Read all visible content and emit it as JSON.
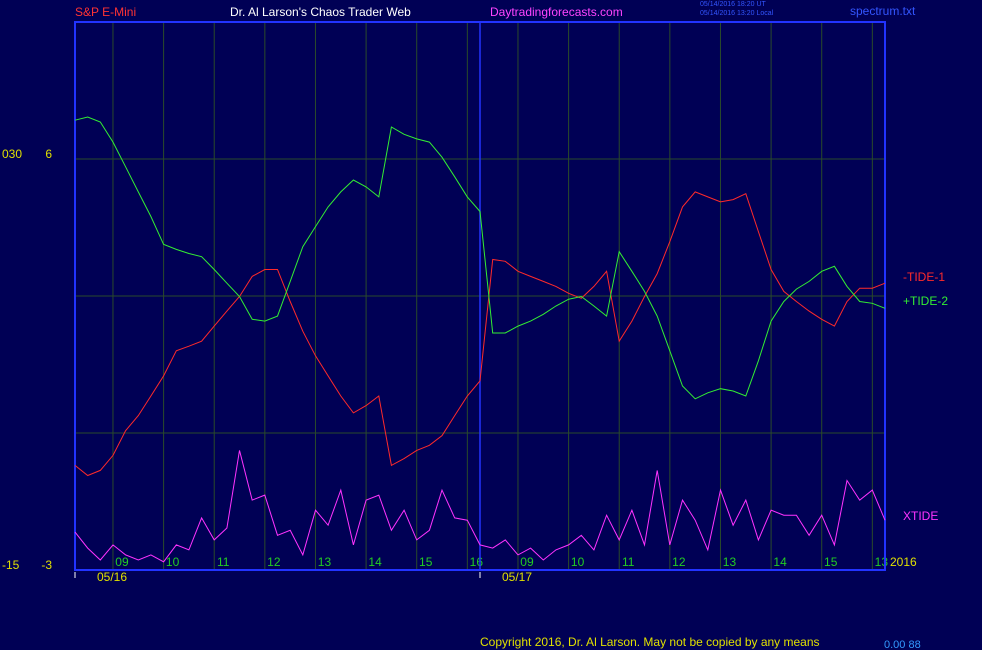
{
  "header": {
    "symbol": "S&P E-Mini",
    "site": "Dr. Al Larson's Chaos Trader Web",
    "url": "Daytradingforecasts.com",
    "stamp_ut": "05/14/2016 18:20 UT",
    "stamp_local": "05/14/2016 13:20 Local",
    "file": "spectrum.txt"
  },
  "footer": {
    "copyright": "Copyright 2016, Dr. Al Larson. May not be copied by any means",
    "status": "0.00 88"
  },
  "chart_data": {
    "type": "line",
    "x": [
      0,
      0.25,
      0.5,
      0.75,
      1,
      1.25,
      1.5,
      1.75,
      2,
      2.25,
      2.5,
      2.75,
      3,
      3.25,
      3.5,
      3.75,
      4,
      4.25,
      4.5,
      4.75,
      5,
      5.25,
      5.5,
      5.75,
      6,
      6.25,
      6.5,
      6.75,
      7,
      7.25,
      7.5,
      7.75,
      8,
      8.25,
      8.5,
      8.75,
      9,
      9.25,
      9.5,
      9.75,
      10,
      10.25,
      10.5,
      10.75,
      11,
      11.25,
      11.5,
      11.75,
      12,
      12.25,
      12.5,
      12.75,
      13,
      13.25,
      13.5,
      13.75,
      14,
      14.25,
      14.5,
      14.75,
      15,
      15.25,
      15.5,
      15.75,
      16
    ],
    "xlim": [
      0,
      16
    ],
    "xticks": [
      {
        "value": 0.75,
        "label": "09"
      },
      {
        "value": 1.75,
        "label": "10"
      },
      {
        "value": 2.75,
        "label": "11"
      },
      {
        "value": 3.75,
        "label": "12"
      },
      {
        "value": 4.75,
        "label": "13"
      },
      {
        "value": 5.75,
        "label": "14"
      },
      {
        "value": 6.75,
        "label": "15"
      },
      {
        "value": 7.75,
        "label": "16"
      },
      {
        "value": 8.75,
        "label": "09"
      },
      {
        "value": 9.75,
        "label": "10"
      },
      {
        "value": 10.75,
        "label": "11"
      },
      {
        "value": 11.75,
        "label": "12"
      },
      {
        "value": 12.75,
        "label": "13"
      },
      {
        "value": 13.75,
        "label": "14"
      },
      {
        "value": 14.75,
        "label": "15"
      },
      {
        "value": 15.75,
        "label": "13"
      }
    ],
    "date_ticks": [
      {
        "value": 0,
        "label": "05/16"
      },
      {
        "value": 8,
        "label": "05/17"
      }
    ],
    "year_label": "2016",
    "ylim": [
      -3,
      9
    ],
    "yticks": [
      -3,
      6
    ],
    "ygrid": [
      0,
      3,
      6
    ],
    "y2lim": [
      -15,
      45
    ],
    "y2ticks": [
      -15,
      {
        "value": 30,
        "label": "030"
      }
    ],
    "grid": true,
    "series": [
      {
        "name": "-TIDE-1",
        "color": "#ff2a2a",
        "values": [
          -0.71,
          -0.93,
          -0.82,
          -0.49,
          0.05,
          0.38,
          0.81,
          1.25,
          1.8,
          1.9,
          2.01,
          2.34,
          2.67,
          2.99,
          3.43,
          3.58,
          3.58,
          2.88,
          2.23,
          1.69,
          1.25,
          0.81,
          0.44,
          0.6,
          0.81,
          -0.71,
          -0.56,
          -0.38,
          -0.27,
          -0.06,
          0.38,
          0.81,
          1.14,
          3.8,
          3.76,
          3.54,
          3.43,
          3.32,
          3.21,
          3.06,
          2.95,
          3.21,
          3.54,
          2.01,
          2.45,
          2.99,
          3.49,
          4.19,
          4.95,
          5.28,
          5.17,
          5.06,
          5.11,
          5.24,
          4.41,
          3.58,
          3.1,
          2.88,
          2.67,
          2.49,
          2.34,
          2.88,
          3.17,
          3.17,
          3.28
        ]
      },
      {
        "name": "+TIDE-2",
        "color": "#33ee33",
        "values": [
          6.85,
          6.92,
          6.81,
          6.37,
          5.83,
          5.28,
          4.74,
          4.13,
          4.02,
          3.93,
          3.86,
          3.58,
          3.28,
          2.99,
          2.49,
          2.45,
          2.56,
          3.32,
          4.08,
          4.52,
          4.95,
          5.28,
          5.54,
          5.39,
          5.17,
          6.7,
          6.54,
          6.44,
          6.37,
          6.04,
          5.61,
          5.17,
          4.85,
          2.19,
          2.19,
          2.34,
          2.45,
          2.6,
          2.78,
          2.93,
          2.99,
          2.78,
          2.56,
          3.97,
          3.54,
          3.1,
          2.56,
          1.8,
          1.03,
          0.75,
          0.88,
          0.97,
          0.92,
          0.81,
          1.58,
          2.45,
          2.88,
          3.15,
          3.32,
          3.54,
          3.65,
          3.21,
          2.88,
          2.84,
          2.73
        ]
      },
      {
        "name": "XTIDE",
        "color": "#ff33ff",
        "values": [
          -2.17,
          -2.52,
          -2.78,
          -2.45,
          -2.67,
          -2.78,
          -2.67,
          -2.82,
          -2.45,
          -2.56,
          -1.86,
          -2.34,
          -2.08,
          -0.38,
          -1.47,
          -1.36,
          -2.24,
          -2.13,
          -2.67,
          -1.69,
          -2.02,
          -1.25,
          -2.45,
          -1.47,
          -1.36,
          -2.13,
          -1.69,
          -2.34,
          -2.13,
          -1.25,
          -1.86,
          -1.91,
          -2.45,
          -2.52,
          -2.34,
          -2.67,
          -2.52,
          -2.78,
          -2.56,
          -2.45,
          -2.24,
          -2.56,
          -1.8,
          -2.34,
          -1.69,
          -2.45,
          -0.82,
          -2.45,
          -1.47,
          -1.91,
          -2.56,
          -1.25,
          -2.02,
          -1.47,
          -2.34,
          -1.69,
          -1.8,
          -1.8,
          -2.24,
          -1.8,
          -2.45,
          -1.04,
          -1.47,
          -1.25,
          -1.91
        ]
      }
    ]
  }
}
